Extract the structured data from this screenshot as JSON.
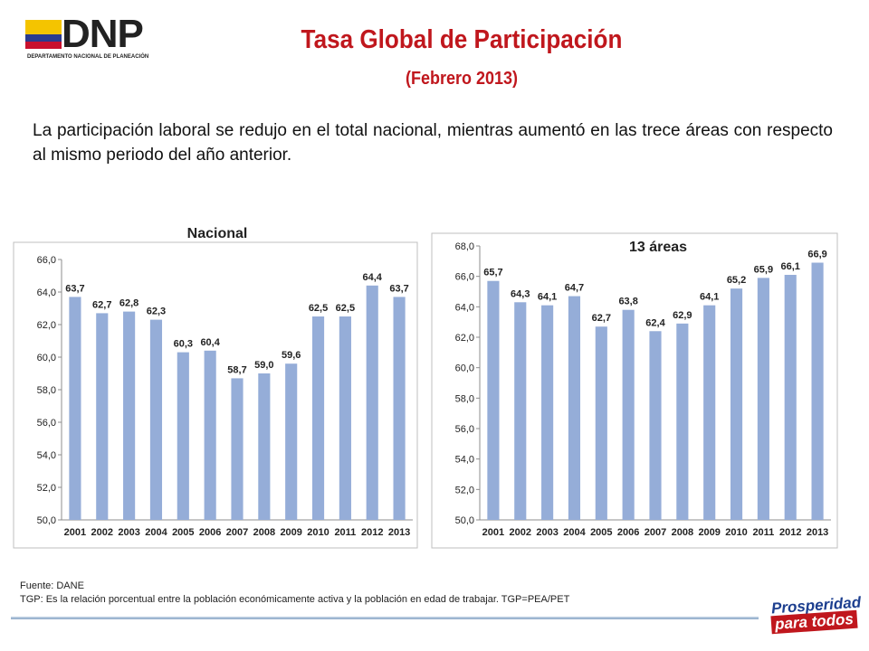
{
  "header": {
    "logo_text": "DNP",
    "logo_subtitle": "DEPARTAMENTO NACIONAL DE PLANEACIÓN",
    "title": "Tasa Global de Participación",
    "subtitle": "(Febrero 2013)"
  },
  "intro_text": "La participación laboral se redujo en el total nacional, mientras aumentó en las trece áreas con respecto al mismo periodo del año anterior.",
  "chart_data": [
    {
      "type": "bar",
      "title": "Nacional",
      "categories": [
        "2001",
        "2002",
        "2003",
        "2004",
        "2005",
        "2006",
        "2007",
        "2008",
        "2009",
        "2010",
        "2011",
        "2012",
        "2013"
      ],
      "values": [
        63.7,
        62.7,
        62.8,
        62.3,
        60.3,
        60.4,
        58.7,
        59.0,
        59.6,
        62.5,
        62.5,
        64.4,
        63.7
      ],
      "value_labels": [
        "63,7",
        "62,7",
        "62,8",
        "62,3",
        "60,3",
        "60,4",
        "58,7",
        "59,0",
        "59,6",
        "62,5",
        "62,5",
        "64,4",
        "63,7"
      ],
      "ylim": [
        50,
        66
      ],
      "yticks": [
        50,
        52,
        54,
        56,
        58,
        60,
        62,
        64,
        66
      ],
      "ytick_labels": [
        "50,0",
        "52,0",
        "54,0",
        "56,0",
        "58,0",
        "60,0",
        "62,0",
        "64,0",
        "66,0"
      ],
      "bar_color": "#95add8",
      "grid": false
    },
    {
      "type": "bar",
      "title": "13 áreas",
      "categories": [
        "2001",
        "2002",
        "2003",
        "2004",
        "2005",
        "2006",
        "2007",
        "2008",
        "2009",
        "2010",
        "2011",
        "2012",
        "2013"
      ],
      "values": [
        65.7,
        64.3,
        64.1,
        64.7,
        62.7,
        63.8,
        62.4,
        62.9,
        64.1,
        65.2,
        65.9,
        66.1,
        66.9
      ],
      "value_labels": [
        "65,7",
        "64,3",
        "64,1",
        "64,7",
        "62,7",
        "63,8",
        "62,4",
        "62,9",
        "64,1",
        "65,2",
        "65,9",
        "66,1",
        "66,9"
      ],
      "ylim": [
        50,
        68
      ],
      "yticks": [
        50,
        52,
        54,
        56,
        58,
        60,
        62,
        64,
        66,
        68
      ],
      "ytick_labels": [
        "50,0",
        "52,0",
        "54,0",
        "56,0",
        "58,0",
        "60,0",
        "62,0",
        "64,0",
        "66,0",
        "68,0"
      ],
      "bar_color": "#95add8",
      "grid": false
    }
  ],
  "footer": {
    "source": "Fuente: DANE",
    "note": "TGP:  Es la relación porcentual entre la población económicamente activa y la población  en edad de trabajar. TGP=PEA/PET",
    "badge_line1": "Prosperidad",
    "badge_line2": "para todos"
  }
}
